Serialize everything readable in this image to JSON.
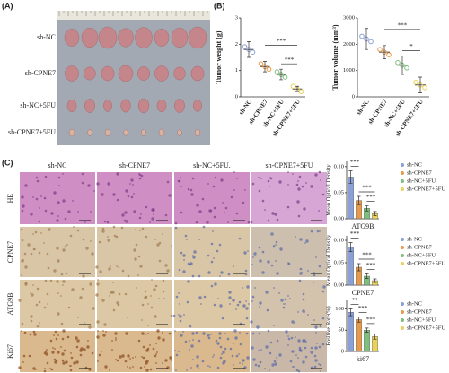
{
  "panels": {
    "a": "(A)",
    "b": "(B)",
    "c": "(C)"
  },
  "photo": {
    "rows": [
      "sh-NC",
      "sh-CPNE7",
      "sh-NC+5FU",
      "sh-CPNE7+5FU"
    ]
  },
  "histology": {
    "columns": [
      "sh-NC",
      "sh-CPNE7",
      "sh-NC+5FU.",
      "sh-CPNE7+5FU"
    ],
    "rows": [
      "HE",
      "CPNE7",
      "ATG9B",
      "Ki67"
    ]
  },
  "chart_data": [
    {
      "type": "dot",
      "y_label": "Tumor weight (g)",
      "categories": [
        "sh-NC",
        "sh-CPNE7",
        "sh-NC+5FU",
        "sh-CPNE7+5FU"
      ],
      "values": [
        1.8,
        1.15,
        0.85,
        0.3
      ],
      "errors": [
        0.3,
        0.2,
        0.2,
        0.1
      ],
      "colors": [
        "#8aa0d6",
        "#e89a4a",
        "#7cc07c",
        "#ead25a"
      ],
      "ylim": [
        0,
        3
      ],
      "yticks": [
        0,
        1,
        2,
        3
      ],
      "significance": [
        "***",
        "***"
      ]
    },
    {
      "type": "dot",
      "y_label": "Tumor volume (mm³)",
      "categories": [
        "sh-NC",
        "sh-CPNE7",
        "sh-NC+5FU",
        "sh-CPNE7+5FU"
      ],
      "values": [
        2200,
        1700,
        1200,
        450
      ],
      "errors": [
        400,
        250,
        350,
        300
      ],
      "colors": [
        "#8aa0d6",
        "#e89a4a",
        "#7cc07c",
        "#ead25a"
      ],
      "ylim": [
        0,
        3000
      ],
      "yticks": [
        0,
        1000,
        2000,
        3000
      ],
      "significance": [
        "***",
        "*"
      ]
    },
    {
      "type": "bar",
      "x_label": "ATG9B",
      "y_label": "Mean Optical Density",
      "categories": [
        "sh-NC",
        "sh-CPNE7",
        "sh-NC+5FU",
        "sh-CPNE7+5FU"
      ],
      "values": [
        0.08,
        0.035,
        0.02,
        0.01
      ],
      "errors": [
        0.012,
        0.008,
        0.005,
        0.004
      ],
      "colors": [
        "#8aa0d6",
        "#e89a4a",
        "#7cc07c",
        "#ead25a"
      ],
      "ylim": [
        0,
        0.11
      ],
      "yticks": [
        {
          "value": 0,
          "label": "0.00"
        },
        {
          "value": 0.05,
          "label": "0.05"
        },
        {
          "value": 0.1,
          "label": "0.10"
        }
      ],
      "significance": [
        "***",
        "***",
        "***"
      ]
    },
    {
      "type": "bar",
      "x_label": "CPNE7",
      "y_label": "Mean Optical Density",
      "categories": [
        "sh-NC",
        "sh-CPNE7",
        "sh-NC+5FU",
        "sh-CPNE7+5FU"
      ],
      "values": [
        0.085,
        0.04,
        0.02,
        0.01
      ],
      "errors": [
        0.01,
        0.008,
        0.005,
        0.004
      ],
      "colors": [
        "#8aa0d6",
        "#e89a4a",
        "#7cc07c",
        "#ead25a"
      ],
      "ylim": [
        0,
        0.11
      ],
      "yticks": [
        {
          "value": 0,
          "label": "0.00"
        },
        {
          "value": 0.05,
          "label": "0.05"
        },
        {
          "value": 0.1,
          "label": "0.10"
        }
      ],
      "significance": [
        "***",
        "***",
        "***"
      ]
    },
    {
      "type": "bar",
      "x_label": "ki67",
      "y_label": "Positive Rate(%)",
      "categories": [
        "sh-NC",
        "sh-CPNE7",
        "sh-NC+5FU",
        "sh-CPNE7+5FU"
      ],
      "values": [
        92,
        75,
        50,
        35
      ],
      "errors": [
        8,
        6,
        5,
        6
      ],
      "colors": [
        "#8aa0d6",
        "#e89a4a",
        "#7cc07c",
        "#ead25a"
      ],
      "ylim": [
        0,
        120
      ],
      "yticks": [
        0,
        50,
        100
      ],
      "significance": [
        "**",
        "***",
        "***"
      ]
    }
  ]
}
